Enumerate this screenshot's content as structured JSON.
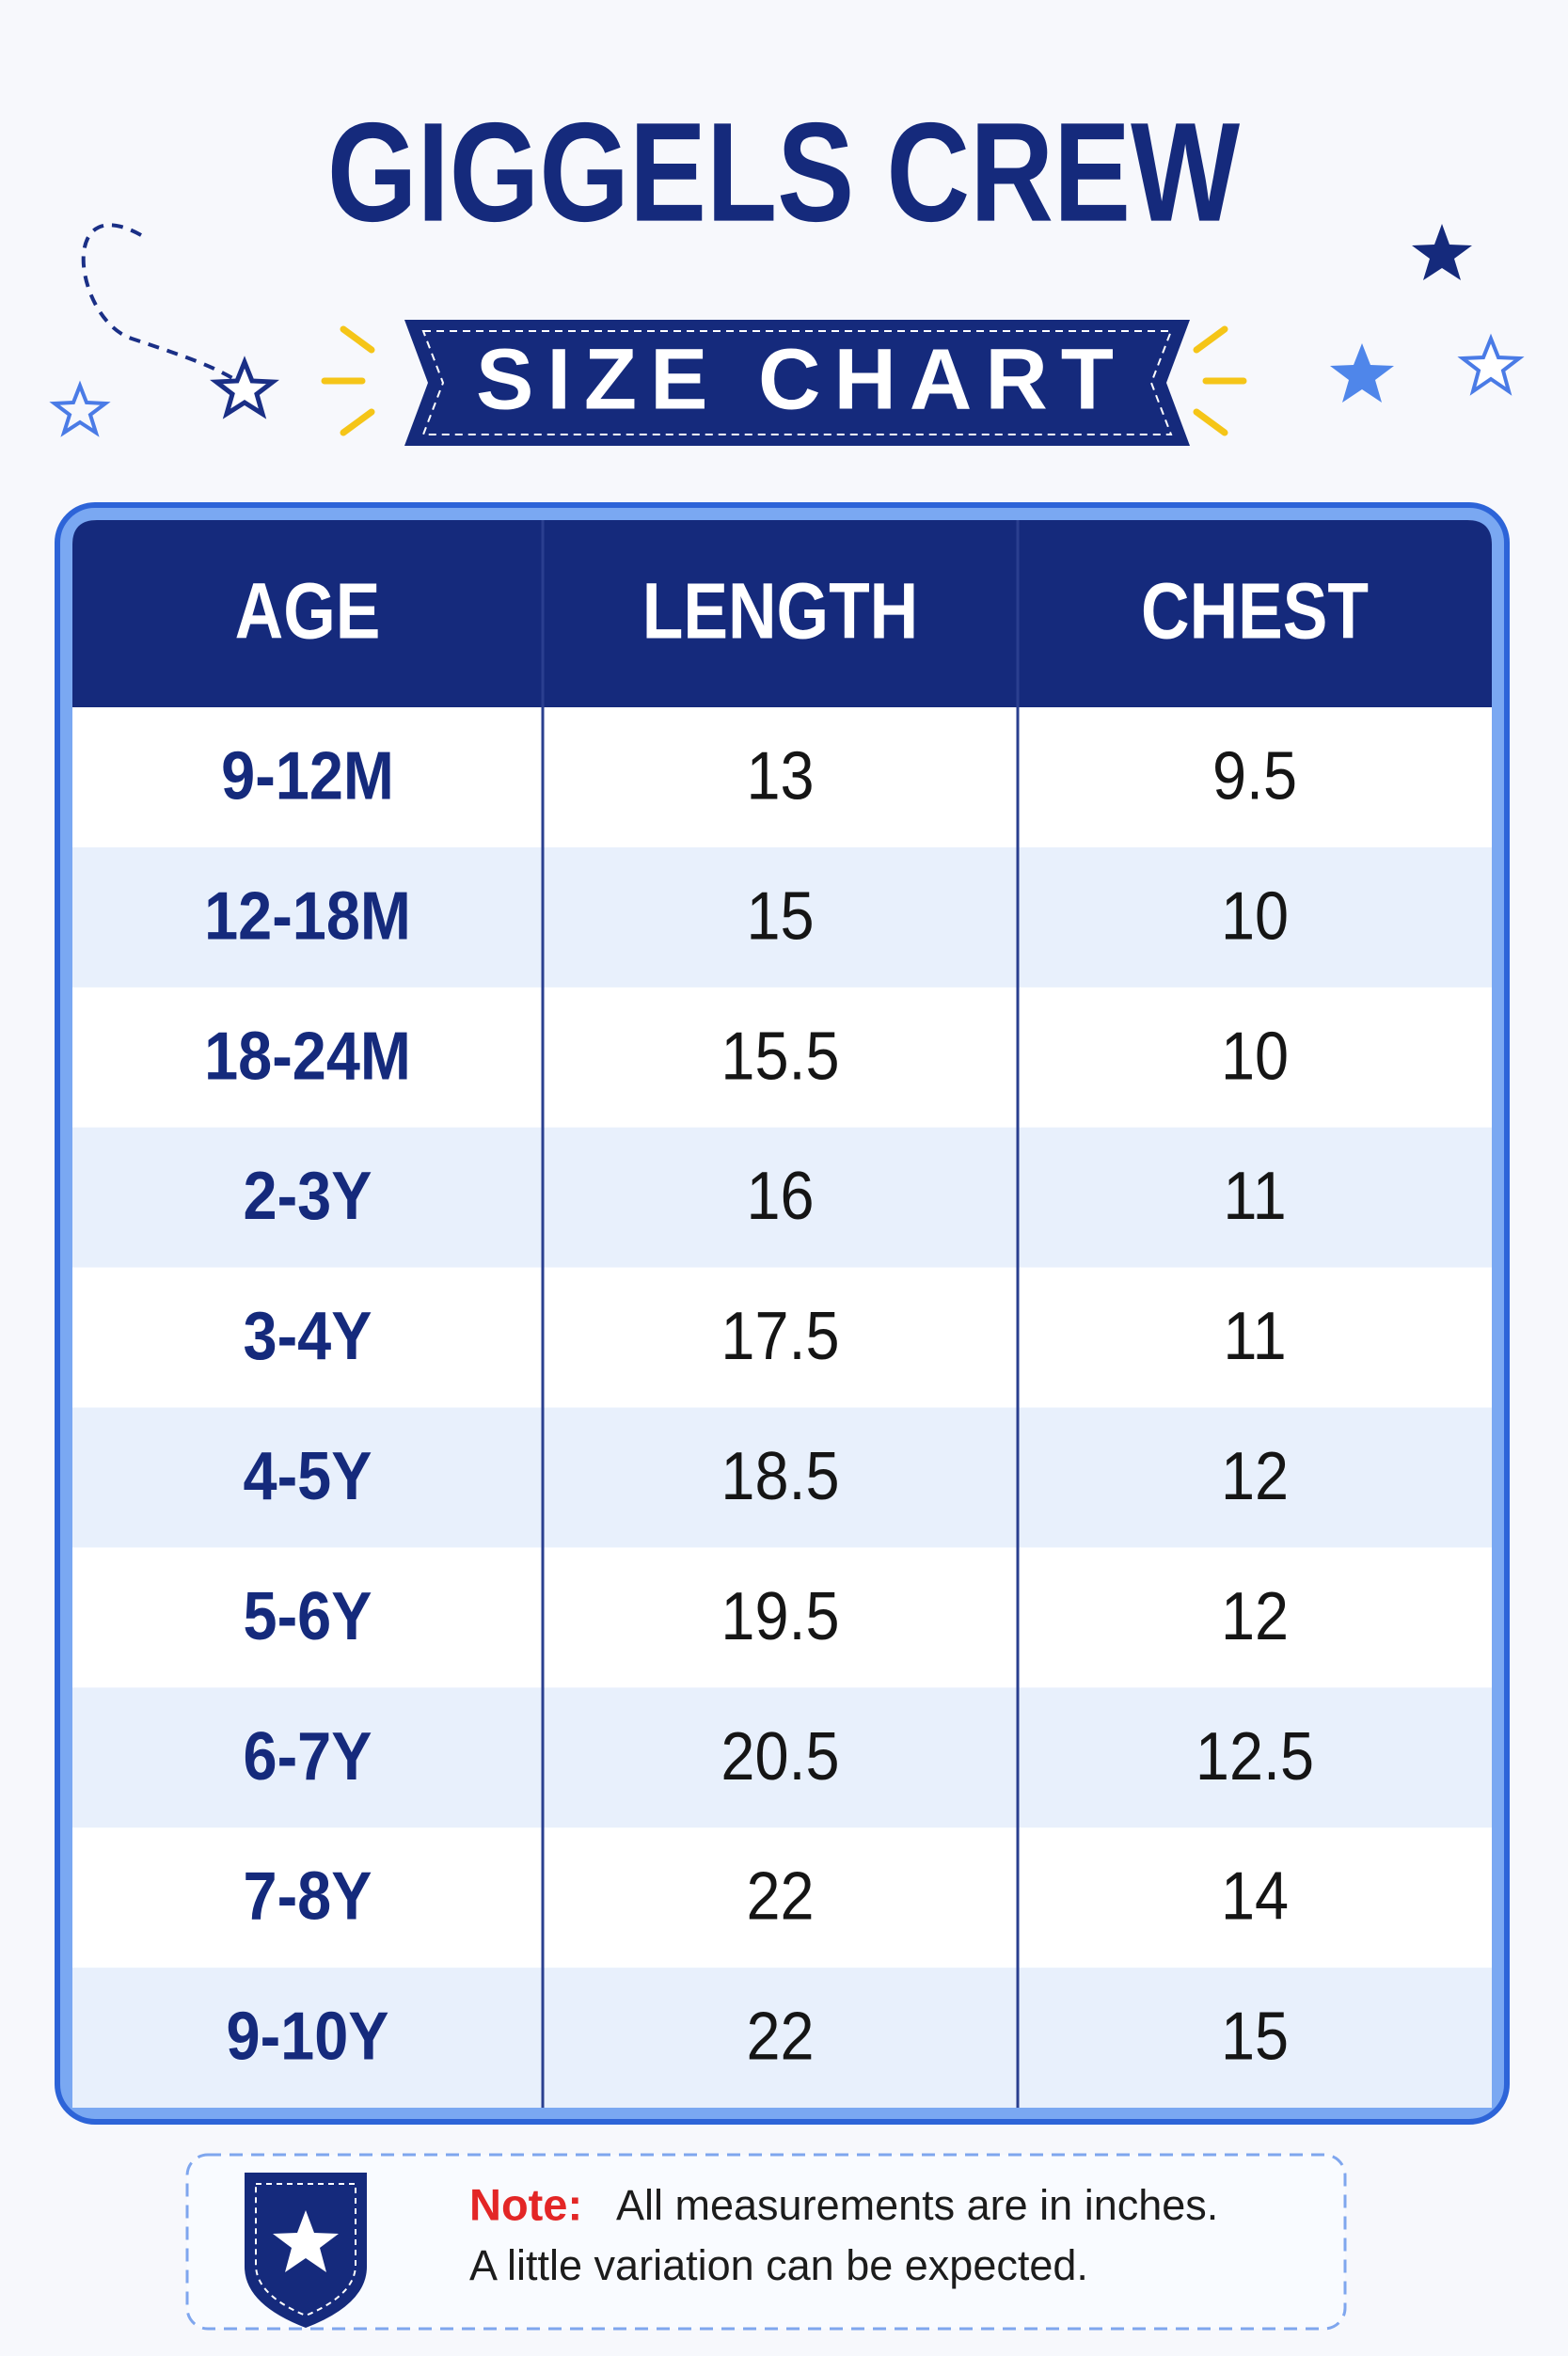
{
  "header": {
    "title": "GIGGELS CREW",
    "subtitle": "SIZE CHART"
  },
  "table": {
    "columns": [
      "AGE",
      "LENGTH",
      "CHEST"
    ],
    "rows": [
      [
        "9-12M",
        "13",
        "9.5"
      ],
      [
        "12-18M",
        "15",
        "10"
      ],
      [
        "18-24M",
        "15.5",
        "10"
      ],
      [
        "2-3Y",
        "16",
        "11"
      ],
      [
        "3-4Y",
        "17.5",
        "11"
      ],
      [
        "4-5Y",
        "18.5",
        "12"
      ],
      [
        "5-6Y",
        "19.5",
        "12"
      ],
      [
        "6-7Y",
        "20.5",
        "12.5"
      ],
      [
        "7-8Y",
        "22",
        "14"
      ],
      [
        "9-10Y",
        "22",
        "15"
      ]
    ]
  },
  "note": {
    "label": "Note:",
    "lines": [
      "All measurements are in inches.",
      "A little variation can be expected."
    ]
  }
}
